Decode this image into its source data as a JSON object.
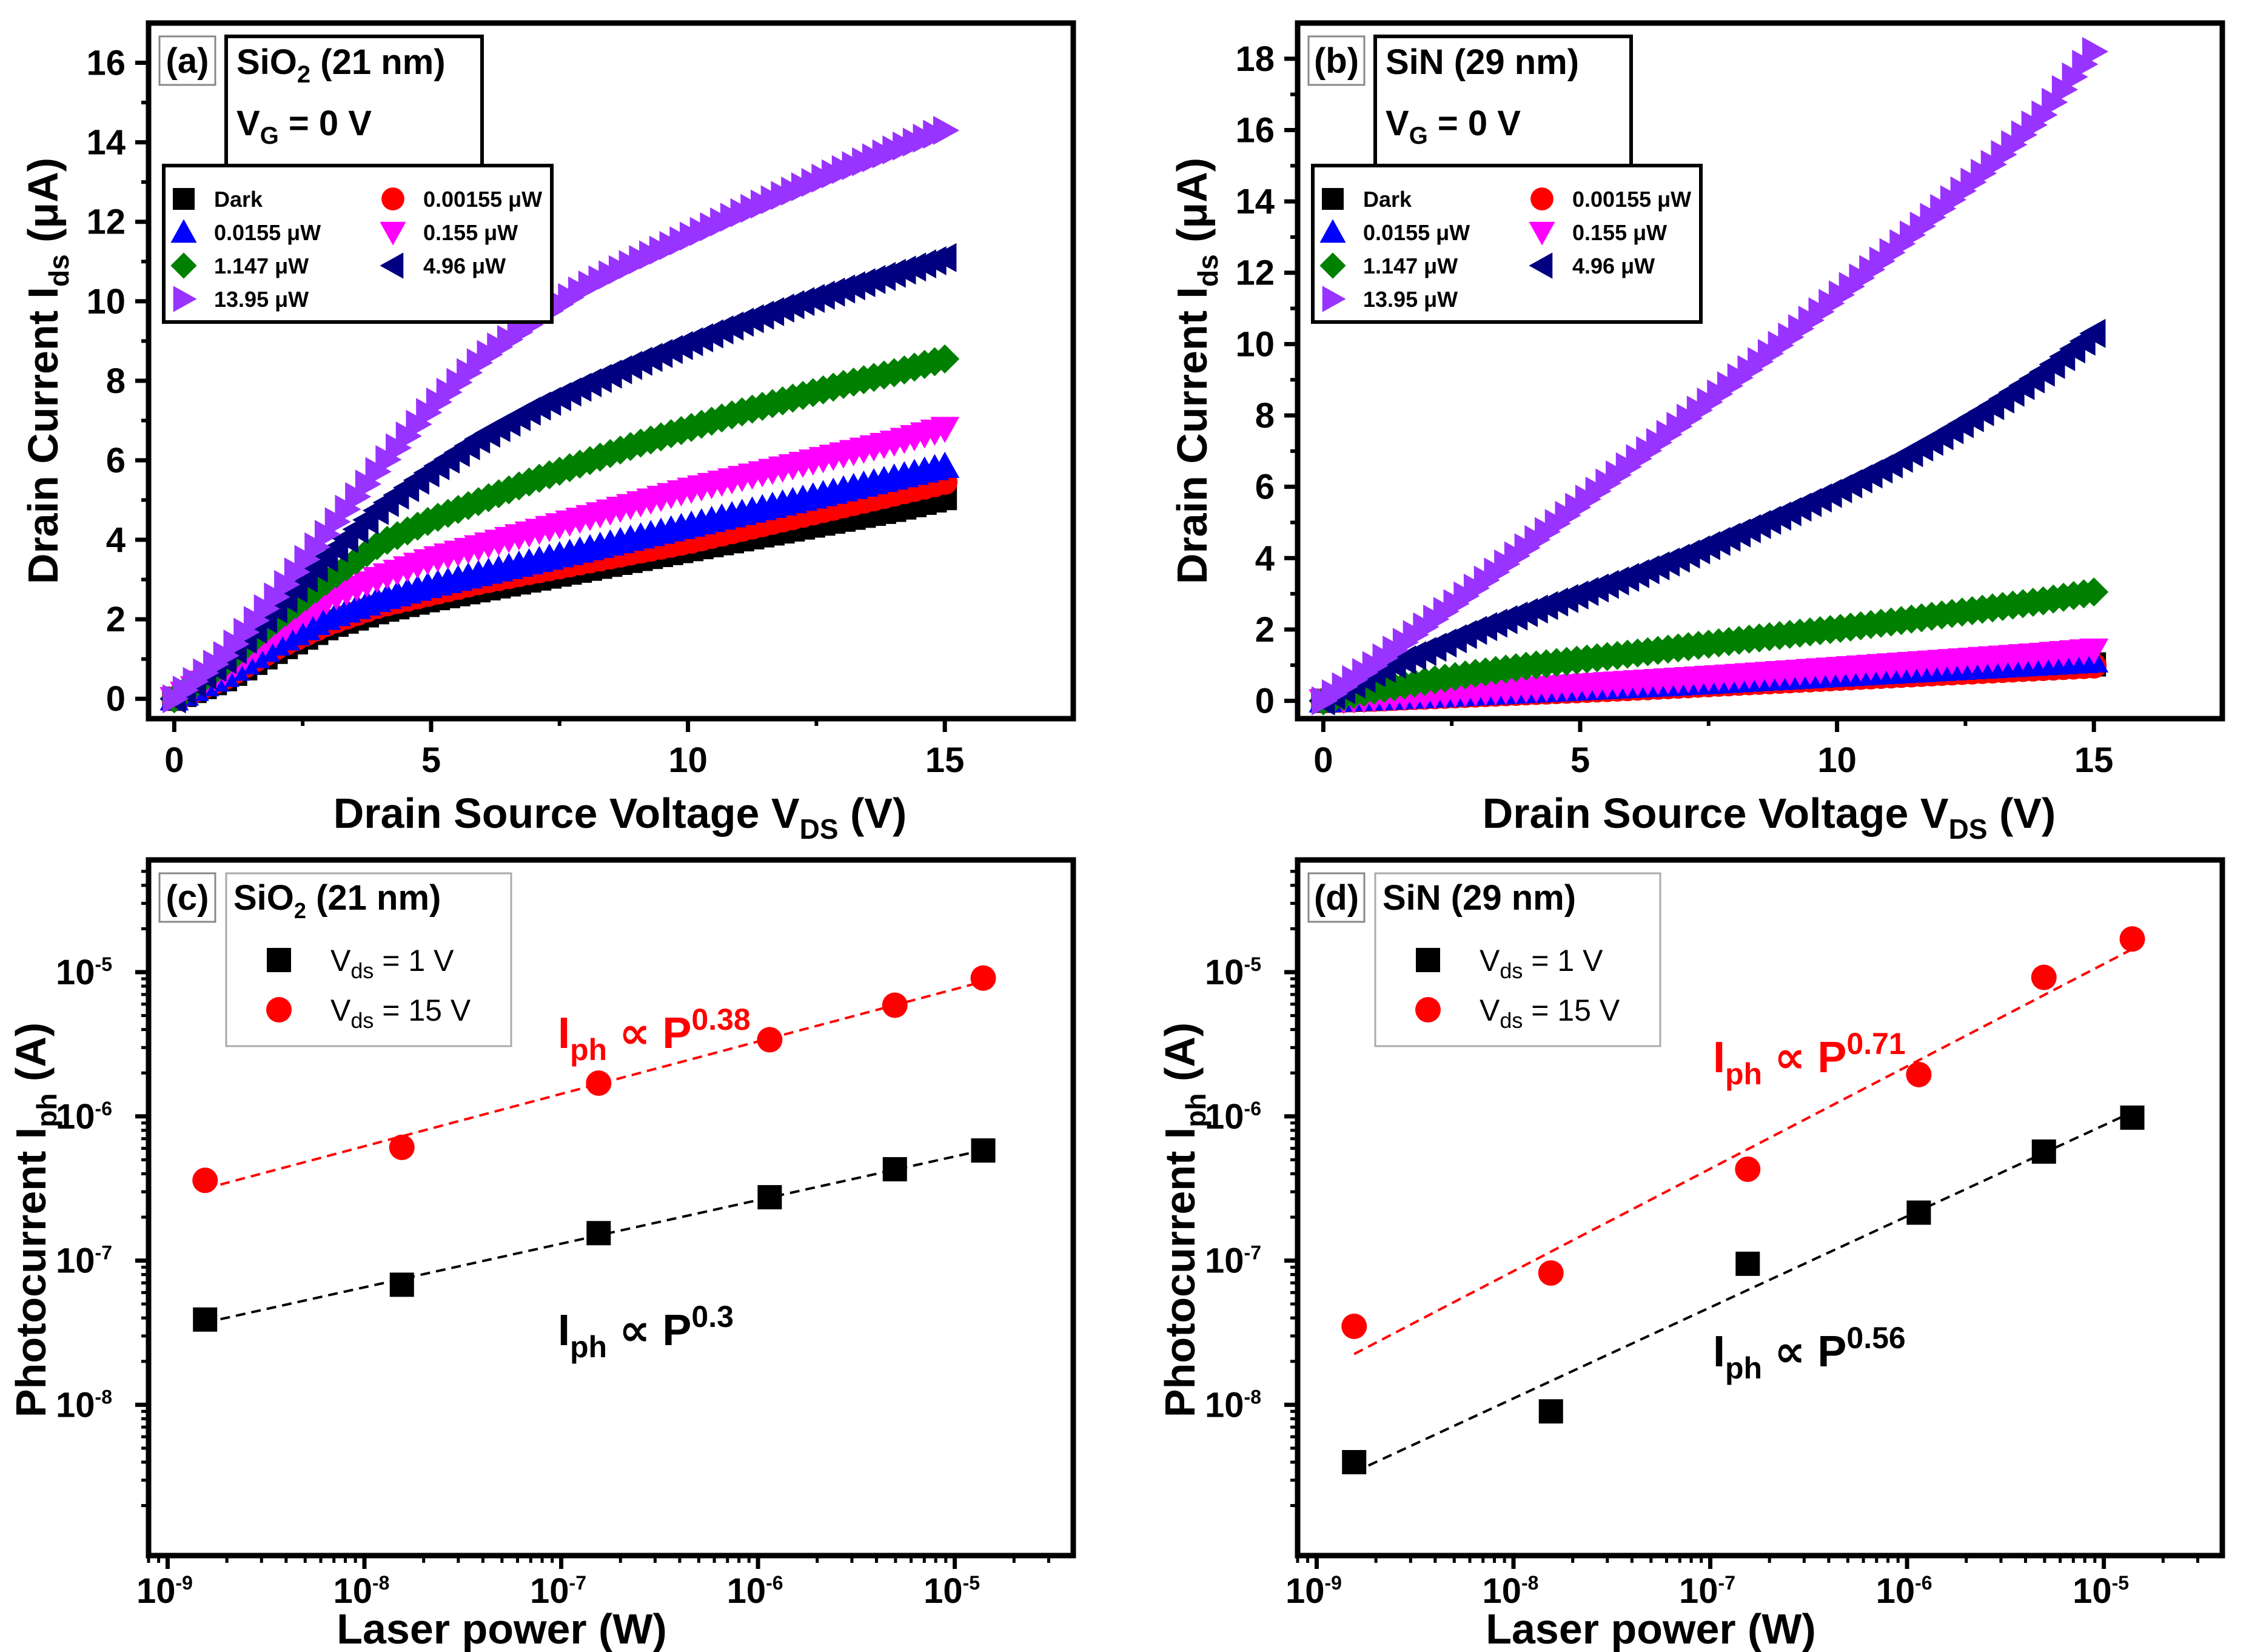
{
  "colors": {
    "dark": "#000000",
    "p00155": "#ff0000",
    "p0155": "#0000ff",
    "p155": "#ff00ff",
    "p1147": "#008000",
    "p496": "#000080",
    "p1395": "#9933ff",
    "vds1": "#000000",
    "vds15": "#ff0000"
  },
  "icons": {
    "dark": "square-marker",
    "p00155": "circle-marker",
    "p0155": "triangle-up-marker",
    "p155": "triangle-down-marker",
    "p1147": "diamond-marker",
    "p496": "triangle-left-marker",
    "p1395": "triangle-right-marker"
  },
  "panels": [
    {
      "label": "(a)",
      "material": "SiO",
      "material_sub": "2",
      "thickness": "(21 nm)",
      "gate_label": "V",
      "gate_sub": "G",
      "gate_value": "= 0 V",
      "ylabel": "Drain Current I",
      "ylabel_sub": "ds",
      "ylabel_unit": "(μA)",
      "xlabel": "Drain Source Voltage V",
      "xlabel_sub": "DS",
      "xlabel_unit": "(V)",
      "xticks": [
        "0",
        "5",
        "10",
        "15"
      ],
      "yticks": [
        "0",
        "2",
        "4",
        "6",
        "8",
        "10",
        "12",
        "14",
        "16"
      ],
      "legend": [
        {
          "key": "dark",
          "text": "Dark"
        },
        {
          "key": "p00155",
          "text": "0.00155 μW"
        },
        {
          "key": "p0155",
          "text": "0.0155 μW"
        },
        {
          "key": "p155",
          "text": "0.155   μW"
        },
        {
          "key": "p1147",
          "text": "1.147  μW"
        },
        {
          "key": "p496",
          "text": "4.96      μW"
        },
        {
          "key": "p1395",
          "text": "13.95  μW"
        }
      ]
    },
    {
      "label": "(b)",
      "material": "SiN",
      "material_sub": "",
      "thickness": "(29 nm)",
      "gate_label": "V",
      "gate_sub": "G",
      "gate_value": "= 0 V",
      "ylabel": "Drain Current I",
      "ylabel_sub": "ds",
      "ylabel_unit": "(μA)",
      "xlabel": "Drain Source Voltage V",
      "xlabel_sub": "DS",
      "xlabel_unit": "(V)",
      "xticks": [
        "0",
        "5",
        "10",
        "15"
      ],
      "yticks": [
        "0",
        "2",
        "4",
        "6",
        "8",
        "10",
        "12",
        "14",
        "16",
        "18"
      ],
      "legend": [
        {
          "key": "dark",
          "text": "Dark"
        },
        {
          "key": "p00155",
          "text": "0.00155 μW"
        },
        {
          "key": "p0155",
          "text": "0.0155 μW"
        },
        {
          "key": "p155",
          "text": "0.155   μW"
        },
        {
          "key": "p1147",
          "text": "1.147  μW"
        },
        {
          "key": "p496",
          "text": "4.96      μW"
        },
        {
          "key": "p1395",
          "text": "13.95  μW"
        }
      ]
    },
    {
      "label": "(c)",
      "material": "SiO",
      "material_sub": "2",
      "thickness": "(21 nm)",
      "ylabel": "Photocurrent I",
      "ylabel_sub": "ph",
      "ylabel_unit": "(A)",
      "xlabel": "Laser power (W)",
      "xticks": [
        {
          "base": "10",
          "exp": "-9"
        },
        {
          "base": "10",
          "exp": "-8"
        },
        {
          "base": "10",
          "exp": "-7"
        },
        {
          "base": "10",
          "exp": "-6"
        },
        {
          "base": "10",
          "exp": "-5"
        }
      ],
      "yticks": [
        {
          "base": "10",
          "exp": "-8"
        },
        {
          "base": "10",
          "exp": "-7"
        },
        {
          "base": "10",
          "exp": "-6"
        },
        {
          "base": "10",
          "exp": "-5"
        }
      ],
      "legend": [
        {
          "key": "vds1",
          "text_main": "V",
          "text_sub": "ds",
          "text_rest": " = 1 V"
        },
        {
          "key": "vds15",
          "text_main": "V",
          "text_sub": "ds",
          "text_rest": " = 15 V"
        }
      ],
      "fit_labels": [
        {
          "key": "vds15",
          "main": "I",
          "sub": "ph",
          "rel": " ∝ P",
          "exp": "0.38"
        },
        {
          "key": "vds1",
          "main": "I",
          "sub": "ph",
          "rel": " ∝ P",
          "exp": "0.3"
        }
      ]
    },
    {
      "label": "(d)",
      "material": "SiN",
      "material_sub": "",
      "thickness": "(29 nm)",
      "ylabel": "Photocurrent I",
      "ylabel_sub": "ph",
      "ylabel_unit": "(A)",
      "xlabel": "Laser power (W)",
      "xticks": [
        {
          "base": "10",
          "exp": "-9"
        },
        {
          "base": "10",
          "exp": "-8"
        },
        {
          "base": "10",
          "exp": "-7"
        },
        {
          "base": "10",
          "exp": "-6"
        },
        {
          "base": "10",
          "exp": "-5"
        }
      ],
      "yticks": [
        {
          "base": "10",
          "exp": "-8"
        },
        {
          "base": "10",
          "exp": "-7"
        },
        {
          "base": "10",
          "exp": "-6"
        },
        {
          "base": "10",
          "exp": "-5"
        }
      ],
      "legend": [
        {
          "key": "vds1",
          "text_main": "V",
          "text_sub": "ds",
          "text_rest": " = 1 V"
        },
        {
          "key": "vds15",
          "text_main": "V",
          "text_sub": "ds",
          "text_rest": " = 15 V"
        }
      ],
      "fit_labels": [
        {
          "key": "vds15",
          "main": "I",
          "sub": "ph",
          "rel": " ∝ P",
          "exp": "0.71"
        },
        {
          "key": "vds1",
          "main": "I",
          "sub": "ph",
          "rel": " ∝ P",
          "exp": "0.56"
        }
      ]
    }
  ],
  "chart_data": [
    {
      "panel": "(a)",
      "type": "scatter",
      "title": "(a) SiO2 (21 nm), VG = 0 V",
      "xlabel": "Drain Source Voltage VDS (V)",
      "ylabel": "Drain Current Ids (μA)",
      "xlim": [
        -0.5,
        17.5
      ],
      "ylim": [
        -0.5,
        17
      ],
      "x": [
        0,
        1,
        2,
        3,
        4,
        5,
        6,
        7,
        8,
        9,
        10,
        11,
        12,
        13,
        14,
        15
      ],
      "series": [
        {
          "key": "dark",
          "name": "Dark",
          "values": [
            0,
            0.5,
            1.2,
            1.8,
            2.2,
            2.5,
            2.75,
            3.0,
            3.25,
            3.5,
            3.75,
            4.0,
            4.25,
            4.5,
            4.75,
            5.05
          ]
        },
        {
          "key": "p00155",
          "name": "0.00155 μW",
          "values": [
            0,
            0.55,
            1.3,
            1.9,
            2.35,
            2.65,
            2.95,
            3.2,
            3.45,
            3.7,
            3.95,
            4.25,
            4.55,
            4.85,
            5.15,
            5.45
          ]
        },
        {
          "key": "p0155",
          "name": "0.0155 μW",
          "values": [
            0,
            0.6,
            1.4,
            2.05,
            2.5,
            2.85,
            3.15,
            3.45,
            3.75,
            4.05,
            4.35,
            4.65,
            4.95,
            5.25,
            5.55,
            5.85
          ]
        },
        {
          "key": "p155",
          "name": "0.155 μW",
          "values": [
            0,
            0.7,
            1.65,
            2.5,
            3.05,
            3.5,
            3.85,
            4.2,
            4.55,
            4.9,
            5.25,
            5.55,
            5.85,
            6.15,
            6.45,
            6.8
          ]
        },
        {
          "key": "p1147",
          "name": "1.147 μW",
          "values": [
            0,
            0.9,
            2.0,
            3.0,
            3.9,
            4.5,
            5.0,
            5.5,
            5.95,
            6.4,
            6.8,
            7.2,
            7.55,
            7.9,
            8.2,
            8.55
          ]
        },
        {
          "key": "p496",
          "name": "4.96 μW",
          "values": [
            0,
            1.0,
            2.3,
            3.6,
            4.8,
            5.75,
            6.6,
            7.3,
            7.9,
            8.45,
            8.95,
            9.45,
            9.9,
            10.3,
            10.7,
            11.1
          ]
        },
        {
          "key": "p1395",
          "name": "13.95 μW",
          "values": [
            0,
            1.1,
            2.6,
            4.2,
            5.8,
            7.3,
            8.55,
            9.5,
            10.35,
            11.0,
            11.6,
            12.2,
            12.75,
            13.3,
            13.8,
            14.3
          ]
        }
      ]
    },
    {
      "panel": "(b)",
      "type": "scatter",
      "title": "(b) SiN (29 nm), VG = 0 V",
      "xlabel": "Drain Source Voltage VDS (V)",
      "ylabel": "Drain Current Ids (μA)",
      "xlim": [
        -0.5,
        17.5
      ],
      "ylim": [
        -0.5,
        19
      ],
      "x": [
        0,
        1,
        2,
        3,
        4,
        5,
        6,
        7,
        8,
        9,
        10,
        11,
        12,
        13,
        14,
        15
      ],
      "series": [
        {
          "key": "dark",
          "name": "Dark",
          "values": [
            0,
            0.05,
            0.12,
            0.18,
            0.25,
            0.31,
            0.38,
            0.45,
            0.52,
            0.59,
            0.66,
            0.73,
            0.8,
            0.88,
            0.95,
            1.02
          ]
        },
        {
          "key": "p00155",
          "name": "0.00155 μW",
          "values": [
            0,
            0.05,
            0.11,
            0.17,
            0.23,
            0.29,
            0.35,
            0.42,
            0.49,
            0.56,
            0.63,
            0.7,
            0.77,
            0.84,
            0.91,
            0.98
          ]
        },
        {
          "key": "p0155",
          "name": "0.0155 μW",
          "values": [
            0,
            0.06,
            0.13,
            0.2,
            0.27,
            0.34,
            0.41,
            0.48,
            0.56,
            0.64,
            0.72,
            0.8,
            0.88,
            0.96,
            1.04,
            1.12
          ]
        },
        {
          "key": "p155",
          "name": "0.155 μW",
          "values": [
            0,
            0.08,
            0.16,
            0.25,
            0.34,
            0.43,
            0.52,
            0.61,
            0.7,
            0.8,
            0.9,
            1.0,
            1.1,
            1.2,
            1.3,
            1.42
          ]
        },
        {
          "key": "p1147",
          "name": "1.147 μW",
          "values": [
            0,
            0.3,
            0.55,
            0.78,
            0.98,
            1.15,
            1.32,
            1.5,
            1.68,
            1.85,
            2.02,
            2.2,
            2.4,
            2.6,
            2.8,
            3.05
          ]
        },
        {
          "key": "p496",
          "name": "4.96 μW",
          "values": [
            0,
            0.8,
            1.4,
            2.0,
            2.5,
            3.0,
            3.5,
            4.05,
            4.65,
            5.25,
            5.9,
            6.6,
            7.4,
            8.25,
            9.2,
            10.3
          ]
        },
        {
          "key": "p1395",
          "name": "13.95 μW",
          "values": [
            0,
            1.0,
            2.1,
            3.2,
            4.35,
            5.5,
            6.65,
            7.8,
            8.95,
            10.1,
            11.3,
            12.5,
            13.75,
            15.0,
            16.4,
            18.2
          ]
        }
      ]
    },
    {
      "panel": "(c)",
      "type": "scatter",
      "title": "(c) SiO2 (21 nm)",
      "xlabel": "Laser power (W)",
      "ylabel": "Photocurrent Iph (A)",
      "xscale": "log",
      "yscale": "log",
      "xlim": [
        8e-10,
        4e-05
      ],
      "ylim": [
        9e-10,
        6e-05
      ],
      "x": [
        1.55e-09,
        1.55e-08,
        1.55e-07,
        1.147e-06,
        4.96e-06,
        1.395e-05
      ],
      "series": [
        {
          "key": "vds1",
          "name": "Vds = 1 V",
          "values": [
            3.9e-08,
            6.8e-08,
            1.55e-07,
            2.75e-07,
            4.3e-07,
            5.8e-07
          ],
          "fit_exponent": 0.3
        },
        {
          "key": "vds15",
          "name": "Vds = 15 V",
          "values": [
            3.6e-07,
            6.1e-07,
            1.7e-06,
            3.4e-06,
            5.9e-06,
            9.1e-06
          ],
          "fit_exponent": 0.38
        }
      ]
    },
    {
      "panel": "(d)",
      "type": "scatter",
      "title": "(d) SiN (29 nm)",
      "xlabel": "Laser power (W)",
      "ylabel": "Photocurrent Iph (A)",
      "xscale": "log",
      "yscale": "log",
      "xlim": [
        8e-10,
        4e-05
      ],
      "ylim": [
        9e-10,
        6e-05
      ],
      "x": [
        1.55e-09,
        1.55e-08,
        1.55e-07,
        1.147e-06,
        4.96e-06,
        1.395e-05
      ],
      "series": [
        {
          "key": "vds1",
          "name": "Vds = 1 V",
          "values": [
            4e-09,
            9e-09,
            9.5e-08,
            2.15e-07,
            5.7e-07,
            9.8e-07
          ],
          "fit_exponent": 0.56
        },
        {
          "key": "vds15",
          "name": "Vds = 15 V",
          "values": [
            3.5e-08,
            8.2e-08,
            4.3e-07,
            1.95e-06,
            9.2e-06,
            1.7e-05
          ],
          "fit_exponent": 0.71
        }
      ]
    }
  ]
}
